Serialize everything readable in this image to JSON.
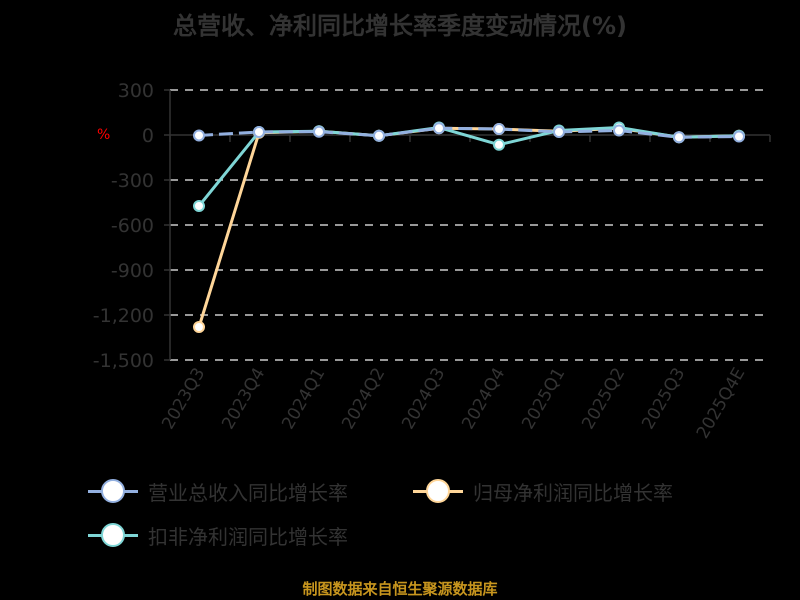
{
  "title": "总营收、净利同比增长率季度变动情况(%)",
  "source_note": "制图数据来自恒生聚源数据库",
  "colors": {
    "revenue": "#93b0e0",
    "net_profit": "#ffd699",
    "deducted_net_profit": "#7fd6d6",
    "grid": "#cccccc",
    "axis": "#333333",
    "unit": "#ff0000",
    "source": "#c8961e"
  },
  "chart_data": {
    "type": "line",
    "title": "总营收、净利同比增长率季度变动情况(%)",
    "xlabel": "",
    "ylabel": "%",
    "ylim": [
      -1500,
      300
    ],
    "yticks": [
      300,
      0,
      -300,
      -600,
      -900,
      -1200,
      -1500
    ],
    "ytick_labels": [
      "300",
      "0",
      "-300",
      "-600",
      "-900",
      "-1,200",
      "-1,500"
    ],
    "grid": true,
    "legend_position": "bottom",
    "categories": [
      "2023Q3",
      "2023Q4",
      "2024Q1",
      "2024Q2",
      "2024Q3",
      "2024Q4",
      "2025Q1",
      "2025Q2",
      "2025Q3",
      "2025Q4E"
    ],
    "series": [
      {
        "name": "营业总收入同比增长率",
        "color": "#93b0e0",
        "style": "dashed",
        "values": [
          -3,
          20,
          22,
          -5,
          45,
          40,
          20,
          30,
          -15,
          -10
        ]
      },
      {
        "name": "归母净利润同比增长率",
        "color": "#ffd699",
        "style": "solid",
        "values": [
          -1280,
          15,
          25,
          -5,
          45,
          40,
          25,
          45,
          -15,
          -5
        ]
      },
      {
        "name": "扣非净利润同比增长率",
        "color": "#7fd6d6",
        "style": "solid",
        "values": [
          -473,
          20,
          25,
          -5,
          50,
          -65,
          30,
          50,
          -15,
          -5
        ]
      }
    ]
  },
  "legend": {
    "items": [
      {
        "label": "营业总收入同比增长率",
        "color": "#93b0e0"
      },
      {
        "label": "归母净利润同比增长率",
        "color": "#ffd699"
      },
      {
        "label": "扣非净利润同比增长率",
        "color": "#7fd6d6"
      }
    ]
  }
}
